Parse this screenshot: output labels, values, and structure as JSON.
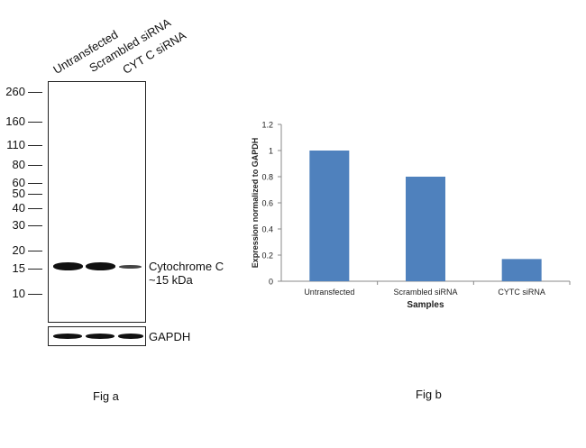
{
  "fig_a": {
    "lanes": [
      "Untransfected",
      "Scrambled siRNA",
      "CYT C siRNA"
    ],
    "markers": [
      {
        "label": "260",
        "kda": 260
      },
      {
        "label": "160",
        "kda": 160
      },
      {
        "label": "110",
        "kda": 110
      },
      {
        "label": "80",
        "kda": 80
      },
      {
        "label": "60",
        "kda": 60
      },
      {
        "label": "50",
        "kda": 50
      },
      {
        "label": "40",
        "kda": 40
      },
      {
        "label": "30",
        "kda": 30
      },
      {
        "label": "20",
        "kda": 20
      },
      {
        "label": "15",
        "kda": 15
      },
      {
        "label": "10",
        "kda": 10
      }
    ],
    "target_label": "Cytochrome C",
    "target_size": "~15 kDa",
    "loading_control": "GAPDH",
    "caption": "Fig a"
  },
  "fig_b": {
    "caption": "Fig b"
  },
  "chart_data": {
    "type": "bar",
    "categories": [
      "Untransfected",
      "Scrambled siRNA",
      "CYTC siRNA"
    ],
    "values": [
      1.0,
      0.8,
      0.17
    ],
    "xlabel": "Samples",
    "ylabel": "Expression normalized to GAPDH",
    "ylim": [
      0,
      1.2
    ],
    "yticks": [
      0,
      0.2,
      0.4,
      0.6,
      0.8,
      1,
      1.2
    ],
    "ytick_labels": [
      "0",
      "0.2",
      "0.4",
      "0.6",
      "0.8",
      "1",
      "1.2"
    ],
    "bar_color": "#4F81BD",
    "grid": false,
    "legend": "none"
  }
}
